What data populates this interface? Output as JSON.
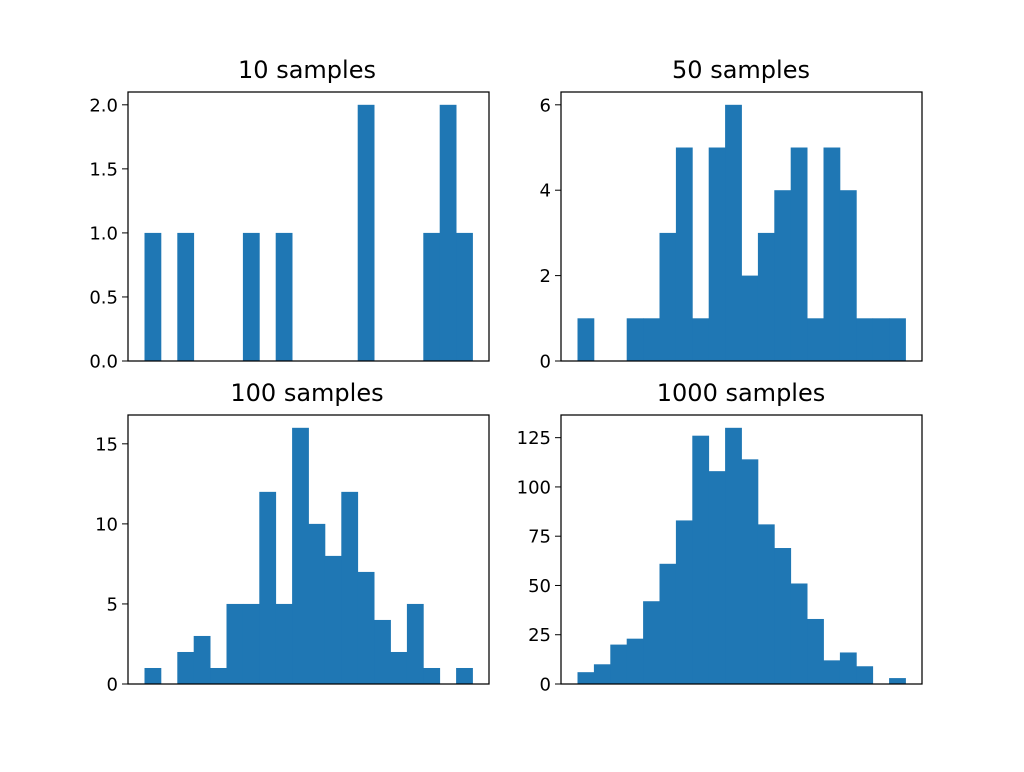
{
  "chart_data": [
    {
      "type": "bar",
      "title": "10 samples",
      "xlabel": "",
      "ylabel": "",
      "ylim": [
        0,
        2.1
      ],
      "yticks": [
        0.0,
        0.5,
        1.0,
        1.5,
        2.0
      ],
      "ytick_labels": [
        "0.0",
        "0.5",
        "1.0",
        "1.5",
        "2.0"
      ],
      "values": [
        1,
        0,
        1,
        0,
        0,
        0,
        1,
        0,
        1,
        0,
        0,
        0,
        0,
        2,
        0,
        0,
        0,
        1,
        2,
        1
      ],
      "color": "#1f77b4",
      "grid": false
    },
    {
      "type": "bar",
      "title": "50 samples",
      "xlabel": "",
      "ylabel": "",
      "ylim": [
        0,
        6.3
      ],
      "yticks": [
        0,
        2,
        4,
        6
      ],
      "ytick_labels": [
        "0",
        "2",
        "4",
        "6"
      ],
      "values": [
        1,
        0,
        0,
        1,
        1,
        3,
        5,
        1,
        5,
        6,
        2,
        3,
        4,
        5,
        1,
        5,
        4,
        1,
        1,
        1
      ],
      "color": "#1f77b4",
      "grid": false
    },
    {
      "type": "bar",
      "title": "100 samples",
      "xlabel": "",
      "ylabel": "",
      "ylim": [
        0,
        16.8
      ],
      "yticks": [
        0,
        5,
        10,
        15
      ],
      "ytick_labels": [
        "0",
        "5",
        "10",
        "15"
      ],
      "values": [
        1,
        0,
        2,
        3,
        1,
        5,
        5,
        12,
        5,
        16,
        10,
        8,
        12,
        7,
        4,
        2,
        5,
        1,
        0,
        1
      ],
      "color": "#1f77b4",
      "grid": false
    },
    {
      "type": "bar",
      "title": "1000 samples",
      "xlabel": "",
      "ylabel": "",
      "ylim": [
        0,
        136.5
      ],
      "yticks": [
        0,
        25,
        50,
        75,
        100,
        125
      ],
      "ytick_labels": [
        "0",
        "25",
        "50",
        "75",
        "100",
        "125"
      ],
      "values": [
        6,
        10,
        20,
        23,
        42,
        61,
        83,
        126,
        108,
        130,
        114,
        81,
        69,
        51,
        33,
        12,
        16,
        9,
        0,
        3
      ],
      "color": "#1f77b4",
      "grid": false
    }
  ]
}
